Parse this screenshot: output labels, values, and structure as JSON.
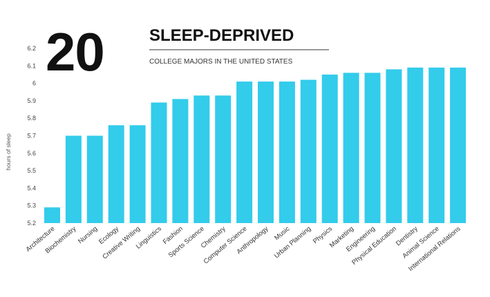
{
  "header": {
    "number": "20",
    "title": "SLEEP-DEPRIVED",
    "subtitle": "COLLEGE MAJORS IN THE UNITED STATES"
  },
  "colors": {
    "bar": "#33CCEB",
    "divider": "#333333"
  },
  "chart_data": {
    "type": "bar",
    "title": "SLEEP-DEPRIVED",
    "subtitle": "COLLEGE MAJORS IN THE UNITED STATES",
    "xlabel": "",
    "ylabel": "hours of sleep",
    "ylim": [
      5.2,
      6.2
    ],
    "yticks": [
      "5.2",
      "5.3",
      "5.4",
      "5.5",
      "5.6",
      "5.7",
      "5.8",
      "5.9",
      "6",
      "6.1",
      "6.2"
    ],
    "grid": false,
    "categories": [
      "Architecture",
      "Biochemistry",
      "Nursing",
      "Ecology",
      "Creative Writing",
      "Linguistics",
      "Fashion",
      "Sports Science",
      "Chemistry",
      "Computer Science",
      "Anthropology",
      "Music",
      "Urban Planning",
      "Physics",
      "Marketing",
      "Engineering",
      "Physical Education",
      "Dentistry",
      "Animal Science",
      "International Relations"
    ],
    "values": [
      5.29,
      5.7,
      5.7,
      5.76,
      5.76,
      5.89,
      5.91,
      5.93,
      5.93,
      6.01,
      6.01,
      6.01,
      6.02,
      6.05,
      6.06,
      6.06,
      6.08,
      6.09,
      6.09,
      6.09
    ]
  }
}
